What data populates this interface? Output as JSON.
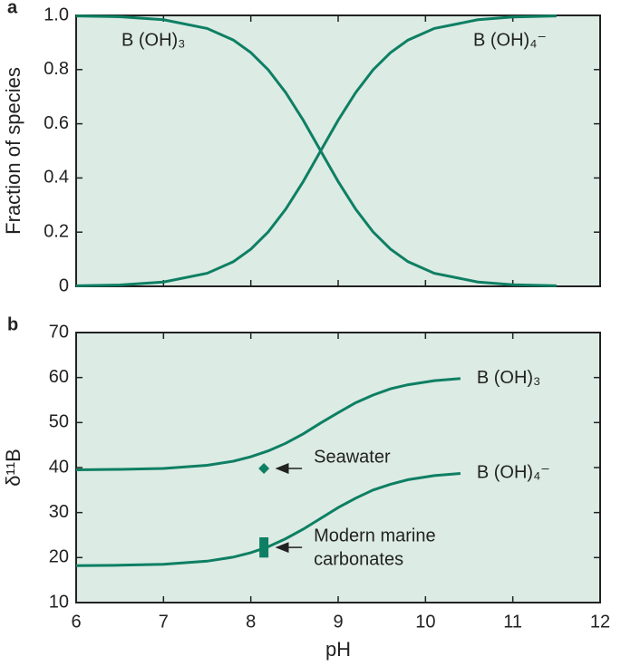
{
  "chart_data": [
    {
      "type": "line",
      "panel_label": "a",
      "ylabel": "Fraction of species",
      "x": [
        6.0,
        6.5,
        7.0,
        7.5,
        7.8,
        8.0,
        8.2,
        8.4,
        8.6,
        8.8,
        9.0,
        9.2,
        9.4,
        9.6,
        9.8,
        10.1,
        10.6,
        11.0,
        11.5
      ],
      "series": [
        {
          "name": "B (OH)₃",
          "color": "#0e7f63",
          "values": [
            0.998,
            0.995,
            0.984,
            0.952,
            0.909,
            0.863,
            0.799,
            0.715,
            0.613,
            0.5,
            0.387,
            0.285,
            0.201,
            0.137,
            0.091,
            0.048,
            0.016,
            0.006,
            0.002
          ]
        },
        {
          "name": "B (OH)₄⁻",
          "color": "#0e7f63",
          "values": [
            0.002,
            0.005,
            0.016,
            0.048,
            0.091,
            0.137,
            0.201,
            0.285,
            0.387,
            0.5,
            0.613,
            0.715,
            0.799,
            0.863,
            0.909,
            0.952,
            0.984,
            0.994,
            0.998
          ]
        }
      ],
      "xlim": [
        6,
        12
      ],
      "ylim": [
        0,
        1
      ],
      "yticks": [
        0,
        0.2,
        0.4,
        0.6,
        0.8,
        {
          "value": 1,
          "label": "1.0"
        }
      ]
    },
    {
      "type": "line",
      "panel_label": "b",
      "ylabel": "δ¹¹B",
      "xlabel": "pH",
      "x": [
        6.0,
        6.5,
        7.0,
        7.5,
        7.8,
        8.0,
        8.2,
        8.4,
        8.6,
        8.8,
        9.0,
        9.2,
        9.4,
        9.6,
        9.8,
        10.1,
        10.4
      ],
      "series": [
        {
          "name": "B (OH)₃",
          "color": "#0e7f63",
          "values": [
            39.5,
            39.6,
            39.8,
            40.5,
            41.4,
            42.4,
            43.7,
            45.4,
            47.5,
            49.9,
            52.2,
            54.4,
            56.1,
            57.5,
            58.4,
            59.3,
            59.8
          ]
        },
        {
          "name": "B (OH)₄⁻",
          "color": "#0e7f63",
          "values": [
            18.2,
            18.3,
            18.5,
            19.2,
            20.1,
            21.1,
            22.4,
            24.2,
            26.3,
            28.7,
            31.1,
            33.2,
            35.0,
            36.3,
            37.3,
            38.2,
            38.7
          ]
        }
      ],
      "point": {
        "name": "Seawater",
        "x": 8.15,
        "y": 39.8,
        "color": "#0e7f63"
      },
      "range": {
        "lines": [
          "Modern marine",
          "carbonates"
        ],
        "x": 8.15,
        "low": 20,
        "high": 24.5,
        "color": "#0e7f63"
      },
      "xlim": [
        6,
        12
      ],
      "xticks": [
        6,
        7,
        8,
        9,
        10,
        11,
        12
      ],
      "ylim": [
        10,
        70
      ],
      "yticks": [
        10,
        20,
        30,
        40,
        50,
        60,
        70
      ]
    }
  ]
}
